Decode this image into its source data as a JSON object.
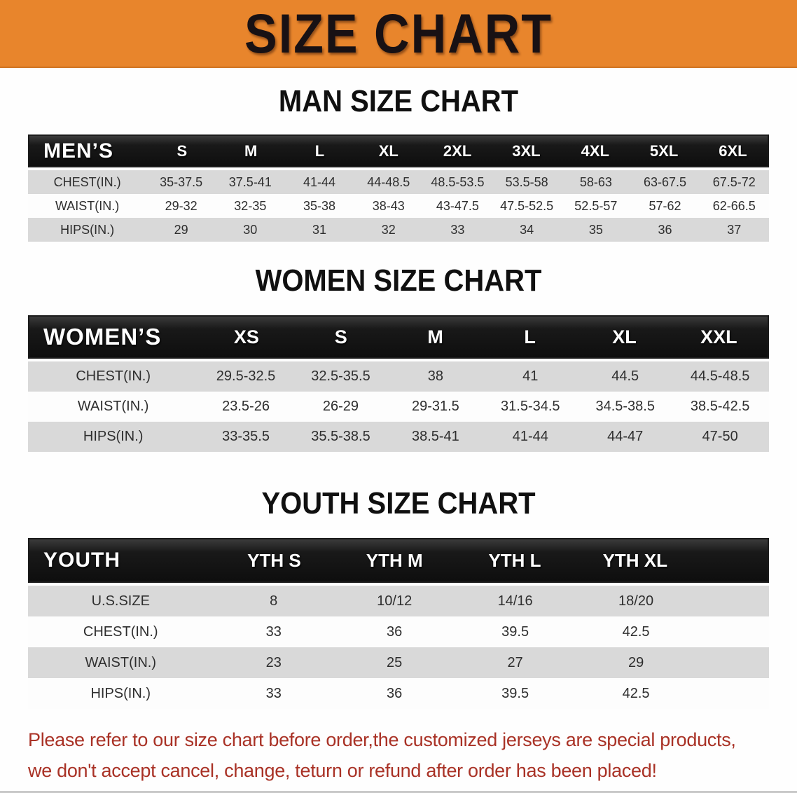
{
  "colors": {
    "banner_bg": "#e8852c",
    "header_bar": "#161616",
    "stripe": "#d9d9d9",
    "disclaimer": "#a93226",
    "bottom_bar": "#c9c9c9",
    "text": "#2e2e2e"
  },
  "banner": {
    "title": "SIZE CHART"
  },
  "sections": [
    {
      "title": "MAN SIZE CHART",
      "table": {
        "header": [
          "MEN’S",
          "S",
          "M",
          "L",
          "XL",
          "2XL",
          "3XL",
          "4XL",
          "5XL",
          "6XL"
        ],
        "rows": [
          {
            "label": "CHEST(IN.)",
            "values": [
              "35-37.5",
              "37.5-41",
              "41-44",
              "44-48.5",
              "48.5-53.5",
              "53.5-58",
              "58-63",
              "63-67.5",
              "67.5-72"
            ]
          },
          {
            "label": "WAIST(IN.)",
            "values": [
              "29-32",
              "32-35",
              "35-38",
              "38-43",
              "43-47.5",
              "47.5-52.5",
              "52.5-57",
              "57-62",
              "62-66.5"
            ]
          },
          {
            "label": "HIPS(IN.)",
            "values": [
              "29",
              "30",
              "31",
              "32",
              "33",
              "34",
              "35",
              "36",
              "37"
            ]
          }
        ]
      }
    },
    {
      "title": "WOMEN SIZE CHART",
      "table": {
        "header": [
          "WOMEN’S",
          "XS",
          "S",
          "M",
          "L",
          "XL",
          "XXL"
        ],
        "rows": [
          {
            "label": "CHEST(IN.)",
            "values": [
              "29.5-32.5",
              "32.5-35.5",
              "38",
              "41",
              "44.5",
              "44.5-48.5"
            ]
          },
          {
            "label": "WAIST(IN.)",
            "values": [
              "23.5-26",
              "26-29",
              "29-31.5",
              "31.5-34.5",
              "34.5-38.5",
              "38.5-42.5"
            ]
          },
          {
            "label": "HIPS(IN.)",
            "values": [
              "33-35.5",
              "35.5-38.5",
              "38.5-41",
              "41-44",
              "44-47",
              "47-50"
            ]
          }
        ]
      }
    },
    {
      "title": "YOUTH SIZE CHART",
      "table": {
        "header": [
          "YOUTH",
          "YTH S",
          "YTH M",
          "YTH L",
          "YTH XL"
        ],
        "rows": [
          {
            "label": "U.S.SIZE",
            "values": [
              "8",
              "10/12",
              "14/16",
              "18/20"
            ]
          },
          {
            "label": "CHEST(IN.)",
            "values": [
              "33",
              "36",
              "39.5",
              "42.5"
            ]
          },
          {
            "label": "WAIST(IN.)",
            "values": [
              "23",
              "25",
              "27",
              "29"
            ]
          },
          {
            "label": "HIPS(IN.)",
            "values": [
              "33",
              "36",
              "39.5",
              "42.5"
            ]
          }
        ]
      }
    }
  ],
  "disclaimer": {
    "lines": [
      "Please refer to our size chart before order,the customized jerseys are special products,",
      "we don't accept cancel, change, teturn or refund after order has been placed!"
    ]
  }
}
